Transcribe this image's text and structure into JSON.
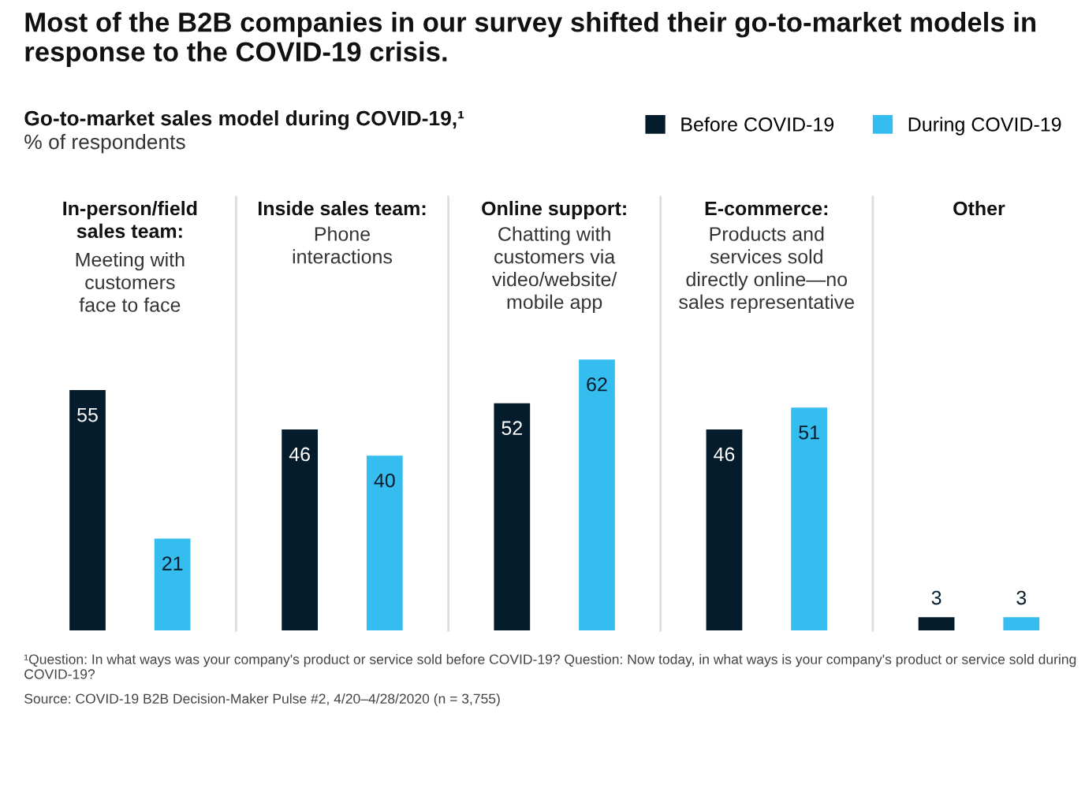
{
  "chart_data": {
    "type": "bar",
    "title": "Most of the B2B companies in our survey shifted their go-to-market models in response to the COVID-19 crisis.",
    "subtitle": "Go-to-market sales model during COVID-19,¹",
    "categories": [
      "In-person/field\nsales team:\nMeeting with\ncustomers\nface to face",
      "Inside sales team:\nPhone\ninteractions",
      "Online support:\nChatting with\ncustomers via\nvideo/website/\nmobile app",
      "E-commerce:\nProducts and\nservices sold\ndirectly online—no\nsales representative",
      "Other"
    ],
    "series": [
      {
        "name": "Before COVID-19",
        "color": "#051c2c",
        "values": [
          55,
          46,
          52,
          46,
          3
        ]
      },
      {
        "name": "During COVID-19",
        "color": "#35bdf0",
        "values": [
          21,
          40,
          62,
          51,
          3
        ]
      }
    ],
    "data_labels": true,
    "legend": "top right",
    "annotations": [
      "% of respondents",
      "¹Question: In what ways was your company's product or service sold before COVID-19? Question: Now today, in what ways is your company's product or service sold during COVID-19?",
      "Source: COVID-19 B2B Decision-Maker Pulse #2, 4/20–4/28/2020 (n = 3,755)"
    ]
  }
}
